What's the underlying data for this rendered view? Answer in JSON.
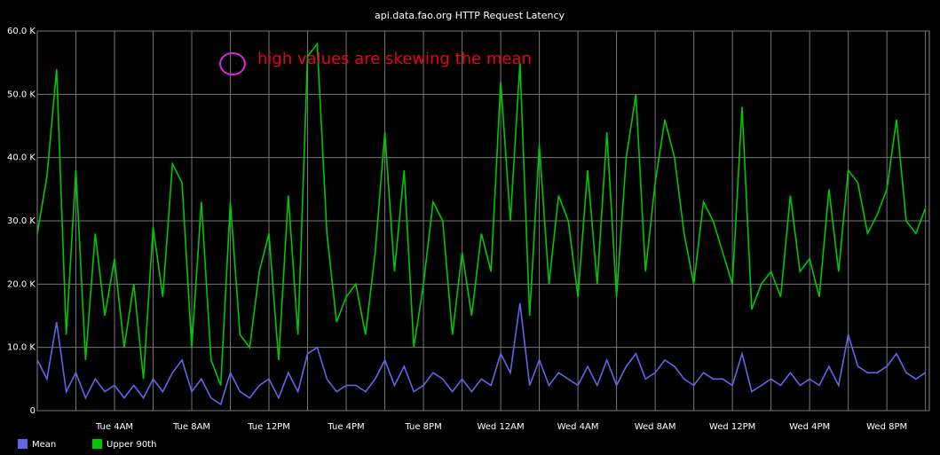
{
  "chart_data": {
    "type": "line",
    "title": "api.data.fao.org HTTP Request Latency",
    "annotation": "high values are skewing the mean",
    "grid": true,
    "legend": "bottom-left",
    "xlim": [
      0,
      46.2
    ],
    "xticks": [
      {
        "value": 4,
        "label": "Tue 4AM"
      },
      {
        "value": 8,
        "label": "Tue 8AM"
      },
      {
        "value": 12,
        "label": "Tue 12PM"
      },
      {
        "value": 16,
        "label": "Tue 4PM"
      },
      {
        "value": 20,
        "label": "Tue 8PM"
      },
      {
        "value": 24,
        "label": "Wed 12AM"
      },
      {
        "value": 28,
        "label": "Wed 4AM"
      },
      {
        "value": 32,
        "label": "Wed 8AM"
      },
      {
        "value": 36,
        "label": "Wed 12PM"
      },
      {
        "value": 40,
        "label": "Wed 4PM"
      },
      {
        "value": 44,
        "label": "Wed 8PM"
      }
    ],
    "ylim": [
      0,
      60000
    ],
    "yticks": [
      0,
      {
        "value": 10000,
        "label": "10.0 K"
      },
      {
        "value": 20000,
        "label": "20.0 K"
      },
      {
        "value": 30000,
        "label": "30.0 K"
      },
      {
        "value": 40000,
        "label": "40.0 K"
      },
      {
        "value": 50000,
        "label": "50.0 K"
      },
      {
        "value": 60000,
        "label": "60.0 K"
      }
    ],
    "x": [
      0,
      0.5,
      1,
      1.5,
      2,
      2.5,
      3,
      3.5,
      4,
      4.5,
      5,
      5.5,
      6,
      6.5,
      7,
      7.5,
      8,
      8.5,
      9,
      9.5,
      10,
      10.5,
      11,
      11.5,
      12,
      12.5,
      13,
      13.5,
      14,
      14.5,
      15,
      15.5,
      16,
      16.5,
      17,
      17.5,
      18,
      18.5,
      19,
      19.5,
      20,
      20.5,
      21,
      21.5,
      22,
      22.5,
      23,
      23.5,
      24,
      24.5,
      25,
      25.5,
      26,
      26.5,
      27,
      27.5,
      28,
      28.5,
      29,
      29.5,
      30,
      30.5,
      31,
      31.5,
      32,
      32.5,
      33,
      33.5,
      34,
      34.5,
      35,
      35.5,
      36,
      36.5,
      37,
      37.5,
      38,
      38.5,
      39,
      39.5,
      40,
      40.5,
      41,
      41.5,
      42,
      42.5,
      43,
      43.5,
      44,
      44.5,
      45,
      45.5,
      46
    ],
    "series": [
      {
        "name": "Upper 90th",
        "color": "#00c800",
        "values": [
          28000,
          37000,
          54000,
          12000,
          38000,
          8000,
          28000,
          15000,
          24000,
          10000,
          20000,
          5000,
          29000,
          18000,
          39000,
          36000,
          10000,
          33000,
          8000,
          4000,
          33000,
          12000,
          10000,
          22000,
          28000,
          8000,
          34000,
          12000,
          56000,
          58000,
          28000,
          14000,
          18000,
          20000,
          12000,
          25000,
          44000,
          22000,
          38000,
          10000,
          20000,
          33000,
          30000,
          12000,
          25000,
          15000,
          28000,
          22000,
          52000,
          30000,
          55000,
          15000,
          42000,
          20000,
          34000,
          30000,
          18000,
          38000,
          20000,
          44000,
          18000,
          40000,
          50000,
          22000,
          36000,
          46000,
          40000,
          28000,
          20000,
          33000,
          30000,
          25000,
          20000,
          48000,
          16000,
          20000,
          22000,
          18000,
          34000,
          22000,
          24000,
          18000,
          35000,
          22000,
          38000,
          36000,
          28000,
          31000,
          35000,
          46000,
          30000,
          28000,
          32000
        ]
      },
      {
        "name": "Mean",
        "color": "#6464e6",
        "values": [
          8000,
          5000,
          14000,
          3000,
          6000,
          2000,
          5000,
          3000,
          4000,
          2000,
          4000,
          2000,
          5000,
          3000,
          6000,
          8000,
          3000,
          5000,
          2000,
          1000,
          6000,
          3000,
          2000,
          4000,
          5000,
          2000,
          6000,
          3000,
          9000,
          10000,
          5000,
          3000,
          4000,
          4000,
          3000,
          5000,
          8000,
          4000,
          7000,
          3000,
          4000,
          6000,
          5000,
          3000,
          5000,
          3000,
          5000,
          4000,
          9000,
          6000,
          17000,
          4000,
          8000,
          4000,
          6000,
          5000,
          4000,
          7000,
          4000,
          8000,
          4000,
          7000,
          9000,
          5000,
          6000,
          8000,
          7000,
          5000,
          4000,
          6000,
          5000,
          5000,
          4000,
          9000,
          3000,
          4000,
          5000,
          4000,
          6000,
          4000,
          5000,
          4000,
          7000,
          4000,
          12000,
          7000,
          6000,
          6000,
          7000,
          9000,
          6000,
          5000,
          6000
        ]
      }
    ]
  }
}
